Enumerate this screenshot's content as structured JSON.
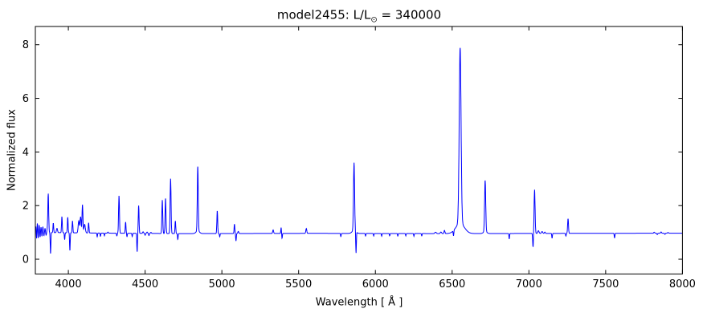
{
  "figure": {
    "title": {
      "main": "model2455: L/L",
      "sub": "⊙",
      "rest": " = 340000"
    },
    "xlabel": "Wavelength [ Å ]",
    "ylabel": "Normalized flux"
  },
  "chart_data": {
    "type": "line",
    "title": "model2455: L/L⊙ = 340000",
    "xlabel": "Wavelength [ Å ]",
    "ylabel": "Normalized flux",
    "xlim": [
      3785,
      8000
    ],
    "ylim": [
      -0.55,
      8.68
    ],
    "xticks": [
      4000,
      4500,
      5000,
      5500,
      6000,
      6500,
      7000,
      7500,
      8000
    ],
    "yticks": [
      0,
      2,
      4,
      6,
      8
    ],
    "grid": false,
    "legend": "none",
    "line_color": "#0000ff",
    "frame_color": "#000000",
    "background": "#ffffff",
    "continuum_nodes": [
      [
        3785,
        1.0
      ],
      [
        4300,
        0.97
      ],
      [
        4750,
        0.955
      ],
      [
        5600,
        0.965
      ],
      [
        6450,
        0.955
      ],
      [
        7300,
        0.965
      ],
      [
        8000,
        0.97
      ]
    ],
    "features_wl_peak_sigma": [
      [
        3789,
        1.25,
        2.2
      ],
      [
        3793,
        0.7,
        2
      ],
      [
        3798,
        1.35,
        2.2
      ],
      [
        3804,
        0.78,
        2
      ],
      [
        3810,
        1.28,
        2.2
      ],
      [
        3816,
        0.82,
        2
      ],
      [
        3822,
        1.2,
        2.2
      ],
      [
        3828,
        0.85,
        2
      ],
      [
        3834,
        1.22,
        2.2
      ],
      [
        3841,
        0.88,
        2
      ],
      [
        3848,
        1.15,
        2.2
      ],
      [
        3855,
        0.9,
        2
      ],
      [
        3862,
        1.1,
        2
      ],
      [
        3869,
        2.45,
        2.8
      ],
      [
        3884,
        0.2,
        2
      ],
      [
        3902,
        1.35,
        2.3
      ],
      [
        3926,
        1.16,
        3.5
      ],
      [
        3958,
        1.6,
        2.4
      ],
      [
        3976,
        0.74,
        2
      ],
      [
        3996,
        1.58,
        2.4
      ],
      [
        4010,
        0.33,
        2
      ],
      [
        4027,
        1.45,
        2.4
      ],
      [
        4068,
        1.45,
        4
      ],
      [
        4080,
        1.6,
        3.5
      ],
      [
        4092,
        2.05,
        2.8
      ],
      [
        4106,
        1.32,
        4.5
      ],
      [
        4132,
        1.38,
        2.4
      ],
      [
        4188,
        0.86,
        2
      ],
      [
        4209,
        0.88,
        2
      ],
      [
        4235,
        0.9,
        2
      ],
      [
        4258,
        1.04,
        2.5
      ],
      [
        4316,
        0.9,
        2
      ],
      [
        4330,
        2.4,
        2.8
      ],
      [
        4373,
        1.42,
        2.4
      ],
      [
        4382,
        0.87,
        2
      ],
      [
        4416,
        0.88,
        2
      ],
      [
        4448,
        0.3,
        2
      ],
      [
        4458,
        2.04,
        2.5
      ],
      [
        4487,
        1.06,
        3
      ],
      [
        4500,
        0.93,
        2
      ],
      [
        4513,
        1.05,
        3
      ],
      [
        4525,
        0.92,
        2
      ],
      [
        4538,
        1.04,
        3
      ],
      [
        4612,
        2.25,
        2.8
      ],
      [
        4633,
        2.32,
        2.8
      ],
      [
        4666,
        3.05,
        3
      ],
      [
        4697,
        1.47,
        2.4
      ],
      [
        4713,
        0.78,
        2
      ],
      [
        4843,
        3.42,
        3
      ],
      [
        4843,
        1.1,
        11
      ],
      [
        4970,
        1.85,
        2.6
      ],
      [
        4986,
        0.88,
        2
      ],
      [
        5082,
        1.35,
        2.4
      ],
      [
        5092,
        0.72,
        2
      ],
      [
        5107,
        1.08,
        3
      ],
      [
        5334,
        1.13,
        3
      ],
      [
        5386,
        1.22,
        2
      ],
      [
        5392,
        0.82,
        2
      ],
      [
        5550,
        1.18,
        3
      ],
      [
        5775,
        0.88,
        2
      ],
      [
        5861,
        3.52,
        3.5
      ],
      [
        5861,
        1.12,
        12
      ],
      [
        5874,
        0.2,
        2
      ],
      [
        5936,
        0.9,
        1.8
      ],
      [
        5989,
        0.9,
        1.8
      ],
      [
        6041,
        0.9,
        1.8
      ],
      [
        6093,
        0.91,
        1.8
      ],
      [
        6146,
        0.9,
        1.8
      ],
      [
        6198,
        0.91,
        1.8
      ],
      [
        6251,
        0.9,
        1.8
      ],
      [
        6302,
        0.91,
        1.8
      ],
      [
        6392,
        1.05,
        5
      ],
      [
        6427,
        1.06,
        4
      ],
      [
        6450,
        1.12,
        3
      ],
      [
        6509,
        0.8,
        2
      ],
      [
        6552,
        7.55,
        6
      ],
      [
        6552,
        1.38,
        28
      ],
      [
        6715,
        2.92,
        3.6
      ],
      [
        6715,
        1.07,
        11
      ],
      [
        6872,
        0.8,
        2
      ],
      [
        7027,
        0.49,
        2.4
      ],
      [
        7037,
        2.63,
        3.2
      ],
      [
        7062,
        1.1,
        4
      ],
      [
        7086,
        1.07,
        4
      ],
      [
        7104,
        1.05,
        3
      ],
      [
        7151,
        0.82,
        2
      ],
      [
        7241,
        0.9,
        2
      ],
      [
        7255,
        1.55,
        2.8
      ],
      [
        7558,
        0.82,
        2
      ],
      [
        7816,
        1.04,
        3
      ],
      [
        7836,
        0.95,
        2.5
      ],
      [
        7861,
        1.05,
        3
      ],
      [
        7886,
        0.96,
        2.5
      ],
      [
        7906,
        1.03,
        3
      ]
    ]
  }
}
